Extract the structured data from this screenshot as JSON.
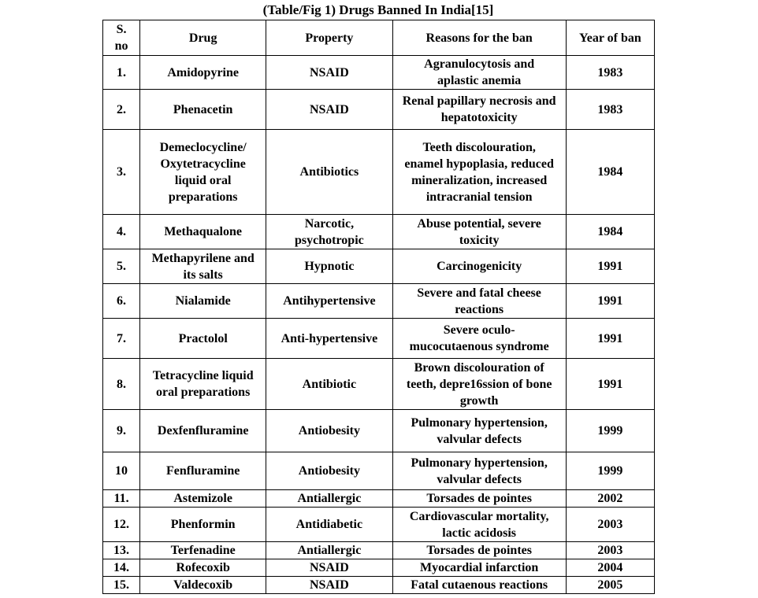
{
  "title": "(Table/Fig 1) Drugs Banned In India[15]",
  "columns": [
    "S.\nno",
    "Drug",
    "Property",
    "Reasons for the ban",
    "Year of ban"
  ],
  "rows": [
    {
      "sno": "1.",
      "drug": "Amidopyrine",
      "property": "NSAID",
      "reason": "Agranulocytosis and aplastic anemia",
      "year": "1983"
    },
    {
      "sno": "2.",
      "drug": "Phenacetin",
      "property": "NSAID",
      "reason": "Renal papillary necrosis and hepatotoxicity",
      "year": "1983"
    },
    {
      "sno": "3.",
      "drug": "Demeclocycline/ Oxytetracycline liquid oral preparations",
      "property": "Antibiotics",
      "reason": "Teeth discolouration, enamel hypoplasia, reduced mineralization, increased intracranial tension",
      "year": "1984"
    },
    {
      "sno": "4.",
      "drug": "Methaqualone",
      "property": "Narcotic, psychotropic",
      "reason": "Abuse potential, severe toxicity",
      "year": "1984"
    },
    {
      "sno": "5.",
      "drug": "Methapyrilene and its salts",
      "property": "Hypnotic",
      "reason": "Carcinogenicity",
      "year": "1991"
    },
    {
      "sno": "6.",
      "drug": "Nialamide",
      "property": "Antihypertensive",
      "reason": "Severe and fatal cheese reactions",
      "year": "1991"
    },
    {
      "sno": "7.",
      "drug": "Practolol",
      "property": "Anti-hypertensive",
      "reason": "Severe oculo-mucocutaenous syndrome",
      "year": "1991"
    },
    {
      "sno": "8.",
      "drug": "Tetracycline liquid oral preparations",
      "property": "Antibiotic",
      "reason": "Brown discolouration of teeth, depre16ssion of bone growth",
      "year": "1991"
    },
    {
      "sno": "9.",
      "drug": "Dexfenfluramine",
      "property": "Antiobesity",
      "reason": "Pulmonary hypertension, valvular defects",
      "year": "1999"
    },
    {
      "sno": "10",
      "drug": "Fenfluramine",
      "property": "Antiobesity",
      "reason": "Pulmonary hypertension, valvular defects",
      "year": "1999"
    },
    {
      "sno": "11.",
      "drug": "Astemizole",
      "property": "Antiallergic",
      "reason": "Torsades de pointes",
      "year": "2002"
    },
    {
      "sno": "12.",
      "drug": "Phenformin",
      "property": "Antidiabetic",
      "reason": "Cardiovascular mortality, lactic acidosis",
      "year": "2003"
    },
    {
      "sno": "13.",
      "drug": "Terfenadine",
      "property": "Antiallergic",
      "reason": "Torsades de pointes",
      "year": "2003"
    },
    {
      "sno": "14.",
      "drug": "Rofecoxib",
      "property": "NSAID",
      "reason": "Myocardial infarction",
      "year": "2004"
    },
    {
      "sno": "15.",
      "drug": "Valdecoxib",
      "property": "NSAID",
      "reason": "Fatal cutaenous reactions",
      "year": "2005"
    }
  ]
}
